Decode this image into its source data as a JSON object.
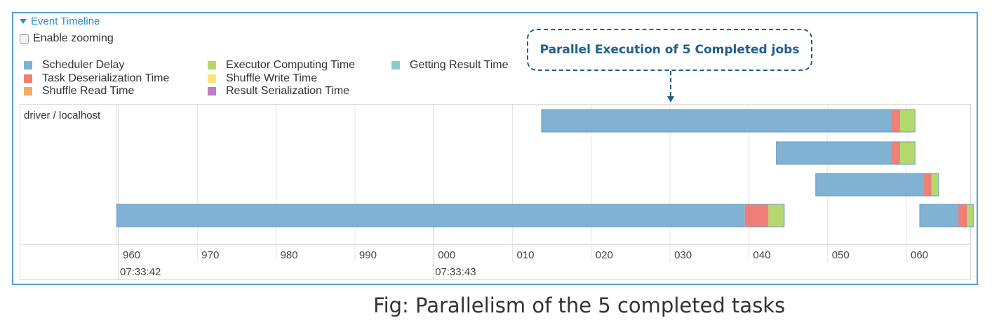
{
  "header": {
    "title": "Event Timeline"
  },
  "controls": {
    "enable_zooming": "Enable zooming"
  },
  "legend": [
    {
      "label": "Scheduler Delay",
      "color": "#7fb2d3"
    },
    {
      "label": "Task Deserialization Time",
      "color": "#f07e74"
    },
    {
      "label": "Shuffle Read Time",
      "color": "#f5ad60"
    },
    {
      "label": "Executor Computing Time",
      "color": "#b5d86e"
    },
    {
      "label": "Shuffle Write Time",
      "color": "#fbe376"
    },
    {
      "label": "Result Serialization Time",
      "color": "#bc7ec0"
    },
    {
      "label": "Getting Result Time",
      "color": "#86cfc3"
    }
  ],
  "group": {
    "label": "driver / localhost"
  },
  "annotation": {
    "text": "Parallel Execution of 5 Completed jobs"
  },
  "caption": "Fig: Parallelism of the 5 completed tasks",
  "axis": {
    "ticks": [
      "960",
      "970",
      "980",
      "990",
      "000",
      "010",
      "020",
      "030",
      "040",
      "050",
      "060"
    ],
    "major_labels": [
      {
        "after_tick": 0,
        "text": "07:33:42"
      },
      {
        "after_tick": 4,
        "text": "07:33:43"
      }
    ]
  },
  "chart_data": {
    "type": "bar",
    "x_unit": "ms offset (tick label)",
    "tasks": [
      {
        "row": 0,
        "segments": [
          {
            "type": "Scheduler Delay",
            "start": 1012.8,
            "end": 1057.2
          },
          {
            "type": "Task Deserialization Time",
            "start": 1057.2,
            "end": 1058.3
          },
          {
            "type": "Executor Computing Time",
            "start": 1058.3,
            "end": 1060.2
          }
        ]
      },
      {
        "row": 1,
        "segments": [
          {
            "type": "Scheduler Delay",
            "start": 1042.6,
            "end": 1057.2
          },
          {
            "type": "Task Deserialization Time",
            "start": 1057.2,
            "end": 1058.3
          },
          {
            "type": "Executor Computing Time",
            "start": 1058.3,
            "end": 1060.2
          }
        ]
      },
      {
        "row": 2,
        "segments": [
          {
            "type": "Scheduler Delay",
            "start": 1047.6,
            "end": 1061.3
          },
          {
            "type": "Task Deserialization Time",
            "start": 1061.3,
            "end": 1062.3
          },
          {
            "type": "Executor Computing Time",
            "start": 1062.3,
            "end": 1063.2
          }
        ]
      },
      {
        "row": 3,
        "segments": [
          {
            "type": "Scheduler Delay",
            "start": 958.9,
            "end": 1038.6
          },
          {
            "type": "Task Deserialization Time",
            "start": 1038.6,
            "end": 1041.6
          },
          {
            "type": "Executor Computing Time",
            "start": 1041.6,
            "end": 1043.6
          }
        ]
      },
      {
        "row": 3,
        "segments": [
          {
            "type": "Scheduler Delay",
            "start": 1060.8,
            "end": 1065.7
          },
          {
            "type": "Task Deserialization Time",
            "start": 1065.7,
            "end": 1066.8
          },
          {
            "type": "Executor Computing Time",
            "start": 1066.8,
            "end": 1067.6
          }
        ]
      }
    ]
  }
}
